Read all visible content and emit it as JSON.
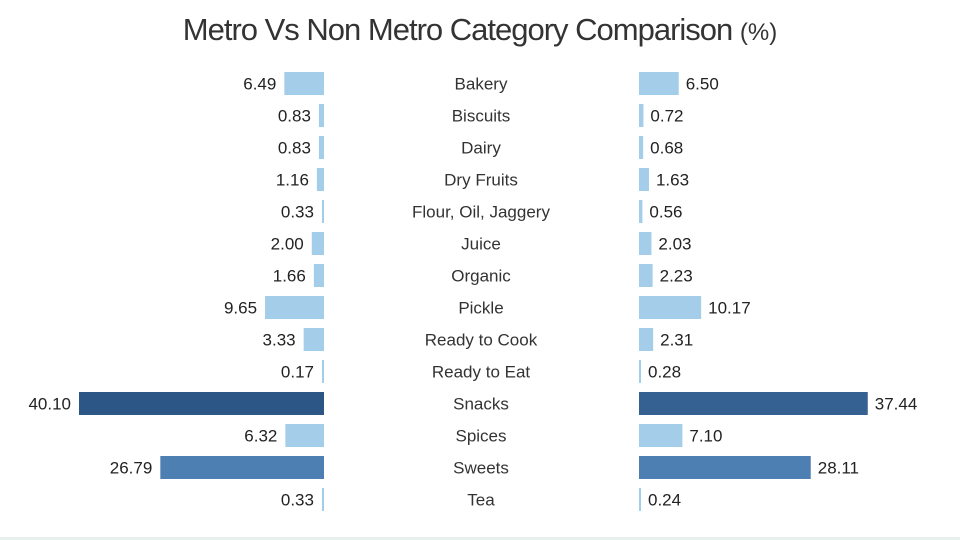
{
  "chart_data": {
    "type": "bar",
    "title": "Metro Vs Non Metro Category Comparison",
    "title_unit": "(%)",
    "categories": [
      "Bakery",
      "Biscuits",
      "Dairy",
      "Dry Fruits",
      "Flour, Oil, Jaggery",
      "Juice",
      "Organic",
      "Pickle",
      "Ready to Cook",
      "Ready to Eat",
      "Snacks",
      "Spices",
      "Sweets",
      "Tea"
    ],
    "series": [
      {
        "values": [
          6.49,
          0.83,
          0.83,
          1.16,
          0.33,
          2.0,
          1.66,
          9.65,
          3.33,
          0.17,
          40.1,
          6.32,
          26.79,
          0.33
        ],
        "labels": [
          "6.49",
          "0.83",
          "0.83",
          "1.16",
          "0.33",
          "2.00",
          "1.66",
          "9.65",
          "3.33",
          "0.17",
          "40.10",
          "6.32",
          "26.79",
          "0.33"
        ]
      },
      {
        "values": [
          6.5,
          0.72,
          0.68,
          1.63,
          0.56,
          2.03,
          2.23,
          10.17,
          2.31,
          0.28,
          37.44,
          7.1,
          28.11,
          0.24
        ],
        "labels": [
          "6.50",
          "0.72",
          "0.68",
          "1.63",
          "0.56",
          "2.03",
          "2.23",
          "10.17",
          "2.31",
          "0.28",
          "37.44",
          "7.10",
          "28.11",
          "0.24"
        ]
      }
    ],
    "color_scale": {
      "low": "#a3cde8",
      "mid": "#4e7fb2",
      "high": "#2b5685"
    },
    "xlim": [
      0,
      40.1
    ],
    "grid": false,
    "legend": "none"
  }
}
